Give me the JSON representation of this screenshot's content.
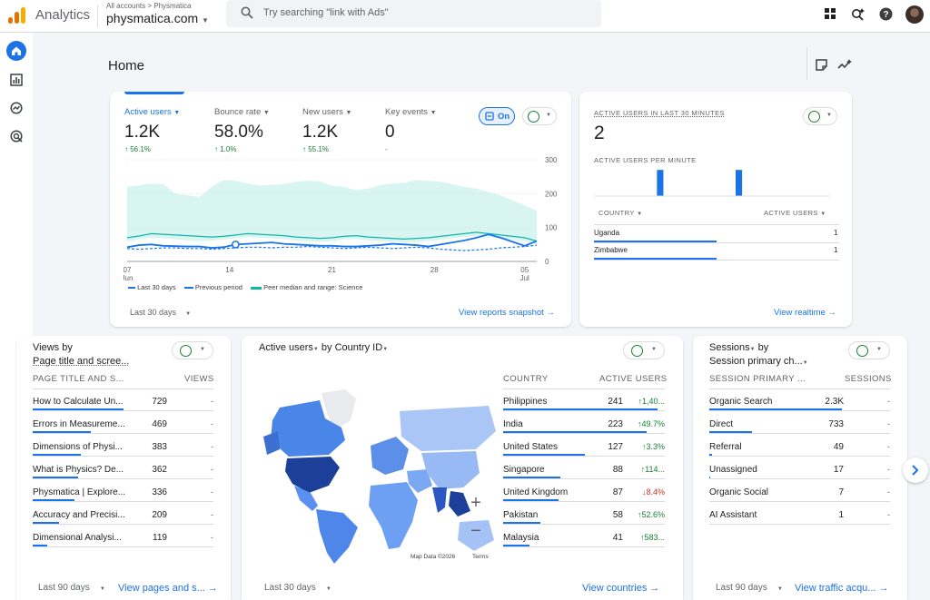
{
  "topbar": {
    "app_name": "Analytics",
    "breadcrumb": "All accounts > Physmatica",
    "property": "physmatica.com",
    "search_placeholder": "Try searching \"link with Ads\""
  },
  "page": {
    "title": "Home"
  },
  "metrics": [
    {
      "label": "Active users",
      "value": "1.2K",
      "change": "↑ 56.1%"
    },
    {
      "label": "Bounce rate",
      "value": "58.0%",
      "change": "↑ 1.0%"
    },
    {
      "label": "New users",
      "value": "1.2K",
      "change": "↑ 55.1%"
    },
    {
      "label": "Key events",
      "value": "0",
      "change": "-"
    }
  ],
  "toggle_label": "On",
  "chart_data": {
    "type": "line",
    "x_ticks": [
      {
        "day": "07",
        "month": "Jun"
      },
      {
        "day": "14",
        "month": ""
      },
      {
        "day": "21",
        "month": ""
      },
      {
        "day": "28",
        "month": ""
      },
      {
        "day": "05",
        "month": "Jul"
      }
    ],
    "y_ticks": [
      "300",
      "200",
      "100",
      "0"
    ],
    "ylim": [
      0,
      300
    ],
    "series": [
      {
        "name": "Last 30 days",
        "values": [
          42,
          48,
          50,
          46,
          45,
          44,
          44,
          40,
          42,
          50,
          52,
          54,
          56,
          52,
          50,
          48,
          46,
          46,
          44,
          44,
          46,
          48,
          52,
          50,
          48,
          44,
          50,
          56,
          62,
          70,
          80,
          70,
          58,
          46,
          60
        ]
      },
      {
        "name": "Previous period",
        "values": [
          38,
          36,
          38,
          40,
          40,
          38,
          38,
          36,
          38,
          40,
          42,
          42,
          40,
          42,
          42,
          44,
          42,
          40,
          38,
          40,
          42,
          40,
          38,
          40,
          42,
          40,
          36,
          34,
          32,
          34,
          36,
          40,
          42,
          44,
          48
        ]
      },
      {
        "name": "Peer median and range: Science",
        "values": [
          70,
          75,
          82,
          80,
          78,
          76,
          74,
          72,
          74,
          78,
          82,
          80,
          78,
          76,
          72,
          70,
          68,
          70,
          74,
          76,
          72,
          70,
          68,
          66,
          68,
          70,
          74,
          78,
          82,
          86,
          82,
          78,
          74,
          70,
          60
        ]
      }
    ],
    "peer_range_upper": [
      220,
      225,
      230,
      228,
      200,
      195,
      190,
      220,
      240,
      238,
      230,
      224,
      226,
      228,
      235,
      238,
      236,
      224,
      220,
      210,
      215,
      225,
      230,
      232,
      240,
      238,
      235,
      228,
      220,
      215,
      205,
      195,
      180,
      165,
      150
    ],
    "peer_range_lower": [
      60,
      65,
      70,
      68,
      65,
      62,
      60,
      62,
      65,
      68,
      72,
      70,
      68,
      66,
      62,
      60,
      58,
      60,
      65,
      66,
      62,
      60,
      58,
      56,
      58,
      60,
      64,
      68,
      72,
      76,
      72,
      68,
      64,
      60,
      50
    ],
    "highlight_index": 9
  },
  "legend": [
    {
      "label": "Last 30 days"
    },
    {
      "label": "Previous period"
    },
    {
      "label": "Peer median and range: Science"
    }
  ],
  "overview_footer": {
    "range": "Last 30 days",
    "link": "View reports snapshot"
  },
  "realtime": {
    "title": "ACTIVE USERS IN LAST 30 MINUTES",
    "value": "2",
    "per_minute_label": "ACTIVE USERS PER MINUTE",
    "col_country": "COUNTRY",
    "col_users": "ACTIVE USERS",
    "rows": [
      {
        "country": "Uganda",
        "users": "1",
        "share": 1.0
      },
      {
        "country": "Zimbabwe",
        "users": "1",
        "share": 1.0
      }
    ],
    "per_minute_bars": [
      0,
      0,
      0,
      0,
      0,
      0,
      0,
      0,
      1,
      0,
      0,
      0,
      0,
      0,
      0,
      0,
      0,
      0,
      1,
      0,
      0,
      0,
      0,
      0,
      0,
      0,
      0,
      0,
      0,
      0
    ],
    "link": "View realtime"
  },
  "views_card": {
    "title_line1": "Views by",
    "title_line2": "Page title and scree...",
    "col1": "PAGE TITLE AND S...",
    "col2": "VIEWS",
    "rows": [
      {
        "label": "How to Calculate Un...",
        "value": "729",
        "change": "-",
        "share": 1.0
      },
      {
        "label": "Errors in Measureme...",
        "value": "469",
        "change": "-",
        "share": 0.64
      },
      {
        "label": "Dimensions of Physi...",
        "value": "383",
        "change": "-",
        "share": 0.53
      },
      {
        "label": "What is Physics? De...",
        "value": "362",
        "change": "-",
        "share": 0.5
      },
      {
        "label": "Physmatica | Explore...",
        "value": "336",
        "change": "-",
        "share": 0.46
      },
      {
        "label": "Accuracy and Precisi...",
        "value": "209",
        "change": "-",
        "share": 0.29
      },
      {
        "label": "Dimensional Analysi...",
        "value": "119",
        "change": "-",
        "share": 0.16
      }
    ],
    "range": "Last 90 days",
    "link": "View pages and s..."
  },
  "country_card": {
    "title_a": "Active users",
    "title_b": " by ",
    "title_c": "Country ID",
    "col1": "COUNTRY",
    "col2": "ACTIVE USERS",
    "rows": [
      {
        "label": "Philippines",
        "value": "241",
        "change": "↑1,40...",
        "dir": "up",
        "share": 1.0
      },
      {
        "label": "India",
        "value": "223",
        "change": "↑49.7%",
        "dir": "up",
        "share": 0.93
      },
      {
        "label": "United States",
        "value": "127",
        "change": "↑3.3%",
        "dir": "up",
        "share": 0.53
      },
      {
        "label": "Singapore",
        "value": "88",
        "change": "↑114...",
        "dir": "up",
        "share": 0.37
      },
      {
        "label": "United Kingdom",
        "value": "87",
        "change": "↓8.4%",
        "dir": "down",
        "share": 0.36
      },
      {
        "label": "Pakistan",
        "value": "58",
        "change": "↑52.6%",
        "dir": "up",
        "share": 0.24
      },
      {
        "label": "Malaysia",
        "value": "41",
        "change": "↑583...",
        "dir": "up",
        "share": 0.17
      }
    ],
    "map_data": "Map Data ©2026",
    "map_terms": "Terms",
    "zoom_in": "+",
    "zoom_out": "−",
    "range": "Last 30 days",
    "link": "View countries"
  },
  "sessions_card": {
    "title_line1": "Sessions",
    "title_line1b": " by",
    "title_line2": "Session primary ch...",
    "col1": "SESSION PRIMARY ...",
    "col2": "SESSIONS",
    "rows": [
      {
        "label": "Organic Search",
        "value": "2.3K",
        "change": "-",
        "share": 1.0
      },
      {
        "label": "Direct",
        "value": "733",
        "change": "-",
        "share": 0.32
      },
      {
        "label": "Referral",
        "value": "49",
        "change": "-",
        "share": 0.02
      },
      {
        "label": "Unassigned",
        "value": "17",
        "change": "-",
        "share": 0.01
      },
      {
        "label": "Organic Social",
        "value": "7",
        "change": "-",
        "share": 0.0
      },
      {
        "label": "AI Assistant",
        "value": "1",
        "change": "-",
        "share": 0.0
      }
    ],
    "range": "Last 90 days",
    "link": "View traffic acqu..."
  },
  "colors": {
    "accent": "#1a73e8",
    "peer": "#b9ece6",
    "peer_line": "#12b5a8",
    "positive": "#188038",
    "negative": "#d93025"
  }
}
